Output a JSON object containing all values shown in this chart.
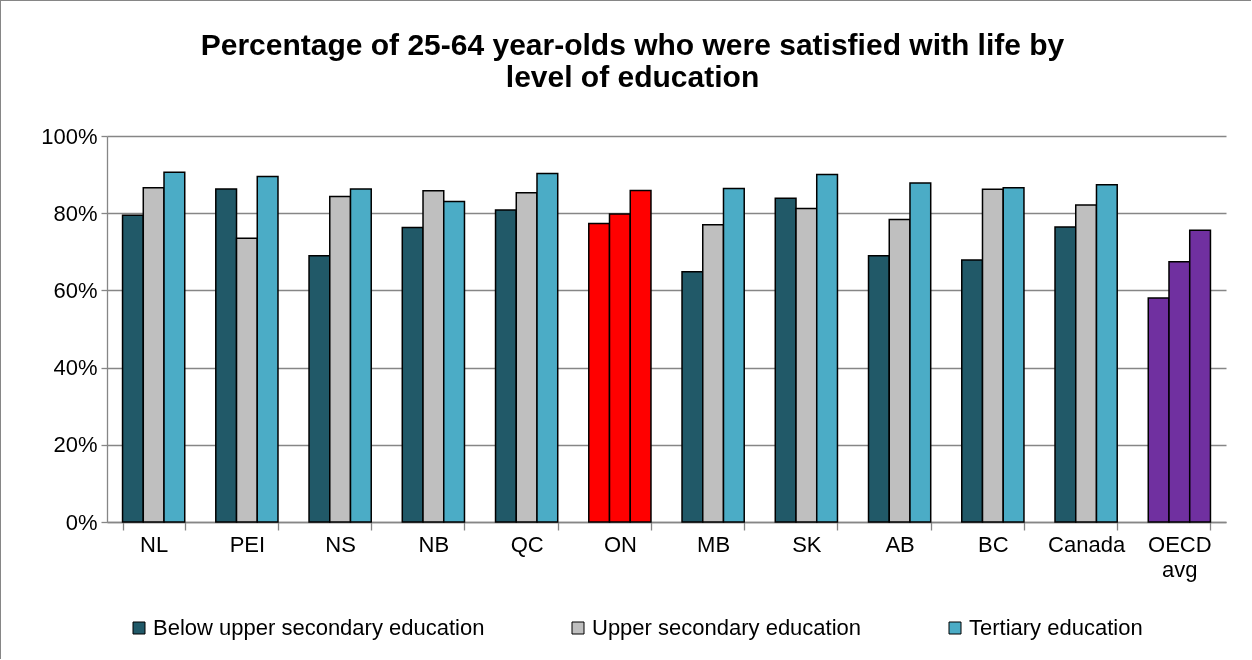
{
  "chart_data": {
    "type": "bar",
    "title": "Percentage of 25-64 year-olds who were satisfied with life by level of education",
    "categories": [
      "NL",
      "PEI",
      "NS",
      "NB",
      "QC",
      "ON",
      "MB",
      "SK",
      "AB",
      "BC",
      "Canada",
      "OECD avg"
    ],
    "series": [
      {
        "name": "Below upper secondary education",
        "color": "#215968",
        "colors": [
          "#215968",
          "#215968",
          "#215968",
          "#215968",
          "#215968",
          "#ff0000",
          "#215968",
          "#215968",
          "#215968",
          "#215968",
          "#215968",
          "#7030a0"
        ],
        "values": [
          79.5,
          86.3,
          69.0,
          76.3,
          80.8,
          77.3,
          64.8,
          83.9,
          69.0,
          67.9,
          76.4,
          58.0
        ]
      },
      {
        "name": "Upper secondary education",
        "color": "#bfbfbf",
        "colors": [
          "#bfbfbf",
          "#bfbfbf",
          "#bfbfbf",
          "#bfbfbf",
          "#bfbfbf",
          "#ff0000",
          "#bfbfbf",
          "#bfbfbf",
          "#bfbfbf",
          "#bfbfbf",
          "#bfbfbf",
          "#7030a0"
        ],
        "values": [
          86.6,
          73.5,
          84.3,
          85.8,
          85.3,
          79.8,
          77.0,
          81.2,
          78.4,
          86.2,
          82.1,
          67.4
        ]
      },
      {
        "name": "Tertiary education",
        "color": "#4bacc6",
        "colors": [
          "#4bacc6",
          "#4bacc6",
          "#4bacc6",
          "#4bacc6",
          "#4bacc6",
          "#ff0000",
          "#4bacc6",
          "#4bacc6",
          "#4bacc6",
          "#4bacc6",
          "#4bacc6",
          "#7030a0"
        ],
        "values": [
          90.6,
          89.5,
          86.3,
          83.0,
          90.3,
          85.9,
          86.4,
          90.0,
          87.8,
          86.6,
          87.4,
          75.6
        ]
      }
    ],
    "ylim": [
      0,
      100
    ],
    "yticks": [
      {
        "value": 0,
        "label": "0%"
      },
      {
        "value": 20,
        "label": "20%"
      },
      {
        "value": 40,
        "label": "40%"
      },
      {
        "value": 60,
        "label": "60%"
      },
      {
        "value": 80,
        "label": "80%"
      },
      {
        "value": 100,
        "label": "100%"
      }
    ],
    "grid": "y",
    "legend": "bottom"
  }
}
